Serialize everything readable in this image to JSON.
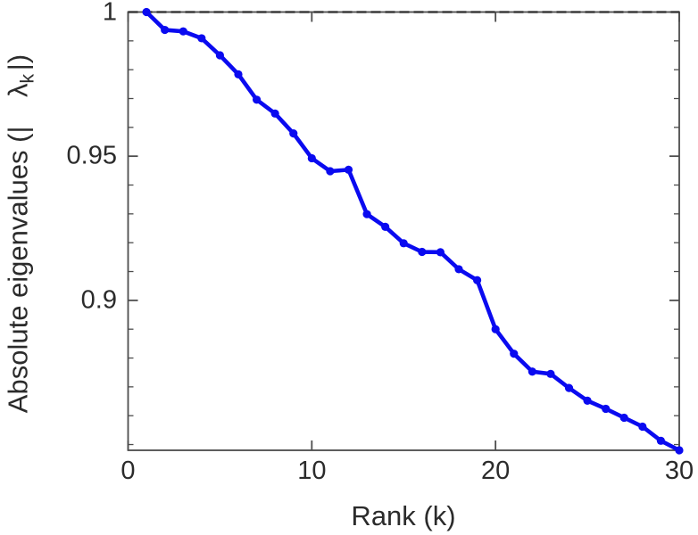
{
  "chart_data": {
    "type": "line",
    "title": "",
    "xlabel": "Rank (k)",
    "ylabel": "Absolute eigenvalues (| λ_k |)",
    "ylabel_parts": {
      "prefix": "Absolute eigenvalues (|",
      "lambda": "λ",
      "subscript": "k",
      "suffix": "|)"
    },
    "x": [
      1,
      2,
      3,
      4,
      5,
      6,
      7,
      8,
      9,
      10,
      11,
      12,
      13,
      14,
      15,
      16,
      17,
      18,
      19,
      20,
      21,
      22,
      23,
      24,
      25,
      26,
      27,
      28,
      29,
      30
    ],
    "series": [
      {
        "name": "absolute-eigenvalues",
        "color": "#0A0AF0",
        "marker": "circle",
        "values": [
          1.0,
          0.9938,
          0.9933,
          0.9909,
          0.985,
          0.9784,
          0.9696,
          0.9648,
          0.9579,
          0.9493,
          0.9448,
          0.9453,
          0.9299,
          0.9255,
          0.9198,
          0.9168,
          0.9167,
          0.9108,
          0.907,
          0.89,
          0.8815,
          0.8753,
          0.8745,
          0.8696,
          0.8652,
          0.8624,
          0.8593,
          0.8562,
          0.8513,
          0.848
        ]
      }
    ],
    "reference_line": {
      "y": 1.0,
      "style": "dashed",
      "color": "#3a3a3a"
    },
    "xlim": [
      0,
      30
    ],
    "ylim": [
      0.848,
      1.0
    ],
    "xticks": {
      "values": [
        0,
        10,
        20,
        30
      ],
      "labels": [
        "0",
        "10",
        "20",
        "30"
      ]
    },
    "yticks": {
      "values": [
        0.9,
        0.95,
        1.0
      ],
      "labels": [
        "0.9",
        "0.95",
        "1"
      ]
    },
    "y_minor_tick_step": 0.01,
    "grid": false,
    "legend": null,
    "axis_color": "#4d4d4d",
    "text_color": "#2b2b2b"
  }
}
